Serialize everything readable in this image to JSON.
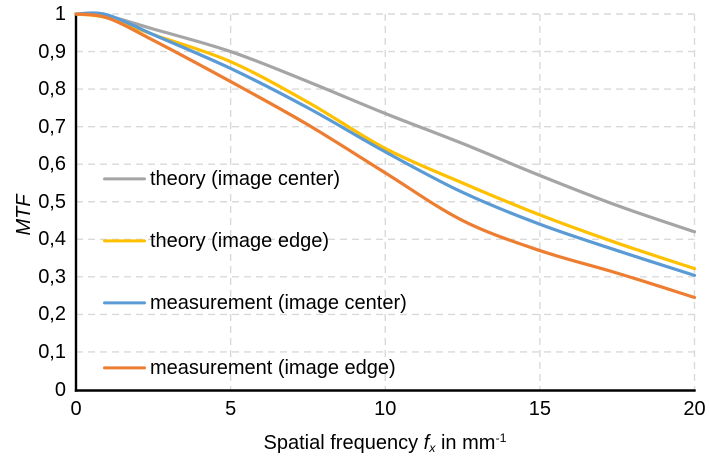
{
  "chart_data": {
    "type": "line",
    "title": "",
    "ylabel": "MTF",
    "xlabel": {
      "prefix": "Spatial frequency",
      "symbol": "f",
      "subscript": "x",
      "infix": "in",
      "unit": "mm",
      "exponent": "-1"
    },
    "xlim": [
      0,
      20
    ],
    "ylim": [
      0,
      1
    ],
    "x_tick_values": [
      0,
      5,
      10,
      15,
      20
    ],
    "x_tick_labels": [
      "0",
      "5",
      "10",
      "15",
      "20"
    ],
    "y_tick_values": [
      1,
      0.9,
      0.8,
      0.7,
      0.6,
      0.5,
      0.4,
      0.3,
      0.2,
      0.1,
      0
    ],
    "y_tick_labels": [
      "1",
      "0,9",
      "0,8",
      "0,7",
      "0,6",
      "0,5",
      "0,4",
      "0,3",
      "0,2",
      "0,1",
      "0"
    ],
    "grid": {
      "on": true,
      "style": "dashed",
      "color": "#D9D9D9"
    },
    "axis_color": "#000000",
    "x": [
      0,
      1,
      2.5,
      5,
      7.5,
      10,
      12.5,
      15,
      17.5,
      20
    ],
    "series": [
      {
        "name": "theory (image center)",
        "color": "#A5A5A5",
        "values": [
          1,
          0.995,
          0.96,
          0.9,
          0.82,
          0.735,
          0.655,
          0.57,
          0.49,
          0.42
        ]
      },
      {
        "name": "theory (image edge)",
        "color": "#FFC000",
        "values": [
          1,
          0.99,
          0.945,
          0.873,
          0.765,
          0.642,
          0.55,
          0.465,
          0.39,
          0.322
        ]
      },
      {
        "name": "measurement (image center)",
        "color": "#5B9BD5",
        "values": [
          1,
          0.998,
          0.945,
          0.855,
          0.75,
          0.633,
          0.525,
          0.44,
          0.37,
          0.304
        ]
      },
      {
        "name": "measurement (image edge)",
        "color": "#ED7D31",
        "values": [
          1,
          0.99,
          0.93,
          0.82,
          0.705,
          0.577,
          0.45,
          0.37,
          0.31,
          0.245
        ]
      }
    ],
    "legend": {
      "position": "inside-left",
      "entries": [
        "theory (image center)",
        "theory (image edge)",
        "measurement (image center)",
        "measurement (image edge)"
      ]
    }
  }
}
